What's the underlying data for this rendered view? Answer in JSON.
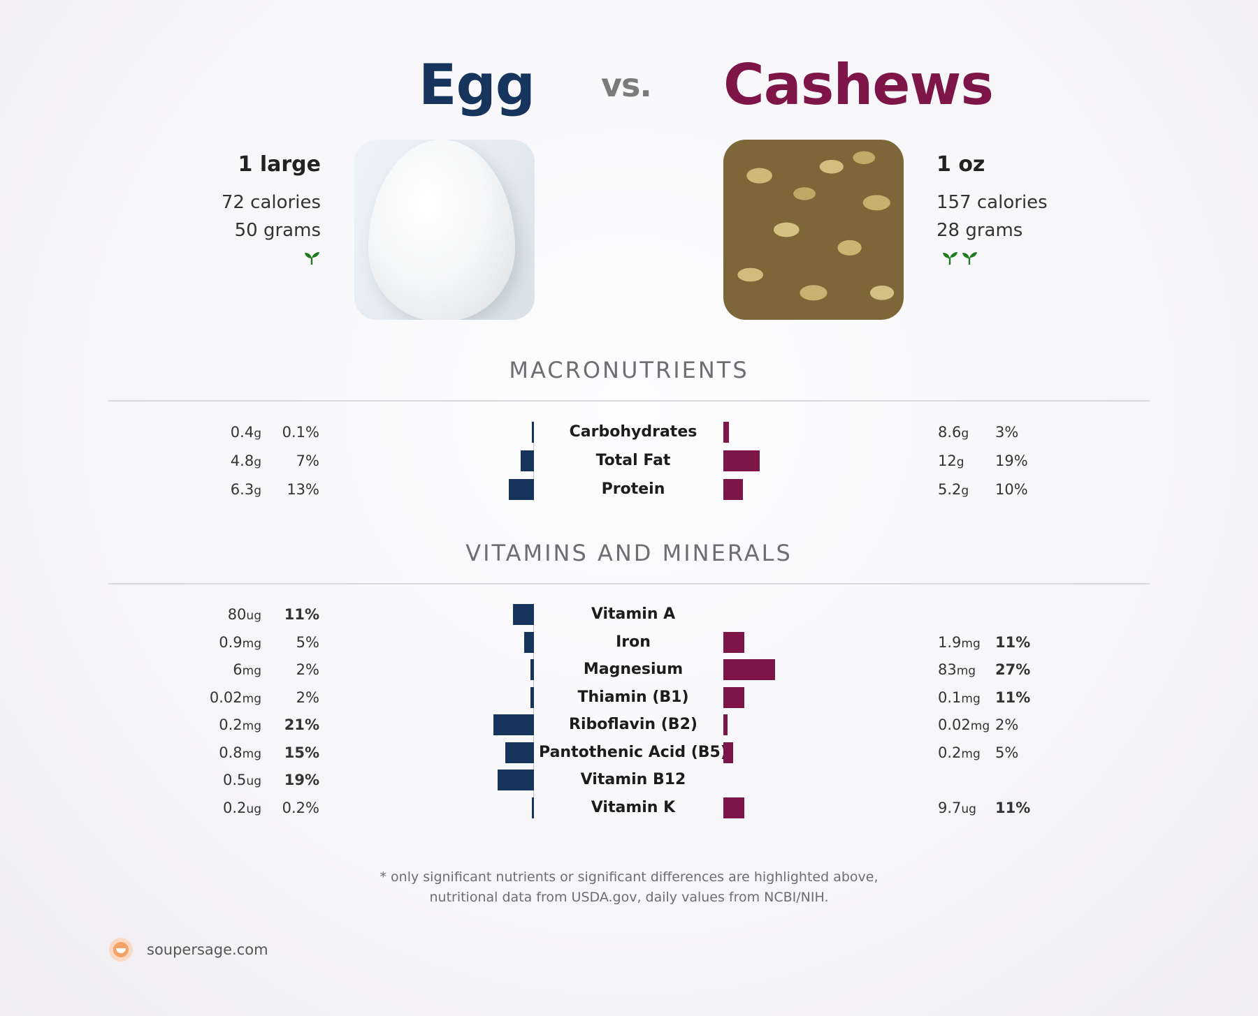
{
  "header": {
    "left_food": "Egg",
    "vs": "vs.",
    "right_food": "Cashews"
  },
  "left": {
    "serving": "1 large",
    "calories": "72 calories",
    "grams": "50 grams",
    "sprouts": 1,
    "image_icon": "egg-photo"
  },
  "right": {
    "serving": "1 oz",
    "calories": "157 calories",
    "grams": "28 grams",
    "sprouts": 2,
    "image_icon": "cashews-photo"
  },
  "colors": {
    "left": "#16345c",
    "right": "#7e1548",
    "sprout": "#1f7a1f"
  },
  "macro_title": "MACRONUTRIENTS",
  "vitamins_title": "VITAMINS AND MINERALS",
  "chart_data": [
    {
      "type": "bar",
      "orientation": "horizontal-diverging",
      "title": "MACRONUTRIENTS",
      "categories": [
        "Carbohydrates",
        "Total Fat",
        "Protein"
      ],
      "series": [
        {
          "name": "Egg",
          "values": [
            0.4,
            4.8,
            6.3
          ],
          "units": [
            "g",
            "g",
            "g"
          ],
          "percent_values": [
            0.1,
            7,
            13
          ],
          "percent_labels": [
            "0.1%",
            "7%",
            "13%"
          ],
          "value_labels": [
            "0.4",
            "4.8",
            "6.3"
          ],
          "percent_bold": [
            false,
            false,
            false
          ]
        },
        {
          "name": "Cashews",
          "values": [
            8.6,
            12,
            5.2
          ],
          "units": [
            "g",
            "g",
            "g"
          ],
          "percent_values": [
            3,
            19,
            10
          ],
          "percent_labels": [
            "3%",
            "19%",
            "10%"
          ],
          "value_labels": [
            "8.6",
            "12",
            "5.2"
          ],
          "percent_bold": [
            false,
            false,
            false
          ]
        }
      ]
    },
    {
      "type": "bar",
      "orientation": "horizontal-diverging",
      "title": "VITAMINS AND MINERALS",
      "categories": [
        "Vitamin A",
        "Iron",
        "Magnesium",
        "Thiamin (B1)",
        "Riboflavin (B2)",
        "Pantothenic Acid (B5)",
        "Vitamin B12",
        "Vitamin K"
      ],
      "series": [
        {
          "name": "Egg",
          "values": [
            80,
            0.9,
            6,
            0.02,
            0.2,
            0.8,
            0.5,
            0.2
          ],
          "units": [
            "ug",
            "mg",
            "mg",
            "mg",
            "mg",
            "mg",
            "ug",
            "ug"
          ],
          "value_labels": [
            "80",
            "0.9",
            "6",
            "0.02",
            "0.2",
            "0.8",
            "0.5",
            "0.2"
          ],
          "percent_values": [
            11,
            5,
            2,
            2,
            21,
            15,
            19,
            0.2
          ],
          "percent_labels": [
            "11%",
            "5%",
            "2%",
            "2%",
            "21%",
            "15%",
            "19%",
            "0.2%"
          ],
          "percent_bold": [
            true,
            false,
            false,
            false,
            true,
            true,
            true,
            false
          ]
        },
        {
          "name": "Cashews",
          "values": [
            null,
            1.9,
            83,
            0.1,
            0.02,
            0.2,
            null,
            9.7
          ],
          "units": [
            "",
            "mg",
            "mg",
            "mg",
            "mg",
            "mg",
            "",
            "ug"
          ],
          "value_labels": [
            "",
            "1.9",
            "83",
            "0.1",
            "0.02",
            "0.2",
            "",
            "9.7"
          ],
          "percent_values": [
            0,
            11,
            27,
            11,
            2,
            5,
            0,
            11
          ],
          "percent_labels": [
            "",
            "11%",
            "27%",
            "11%",
            "2%",
            "5%",
            "",
            "11%"
          ],
          "percent_bold": [
            false,
            true,
            true,
            true,
            false,
            false,
            false,
            true
          ]
        }
      ]
    }
  ],
  "footnote": {
    "line1": "* only significant nutrients or significant differences are highlighted above,",
    "line2": "nutritional data from USDA.gov, daily values from NCBI/NIH."
  },
  "footer": {
    "site": "soupersage.com",
    "logo_icon": "soupersage-logo-icon"
  }
}
